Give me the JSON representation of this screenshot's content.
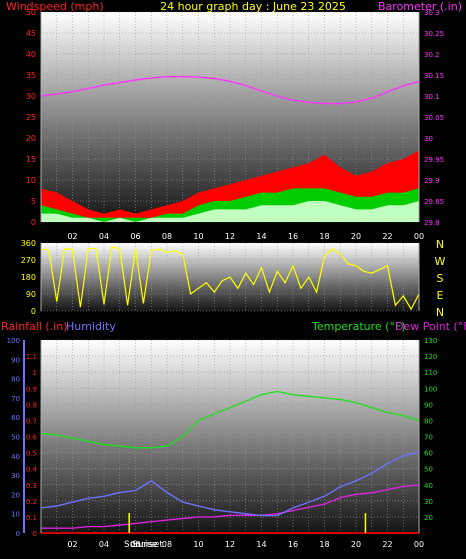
{
  "header": {
    "left_label": "Windspeed (mph)",
    "center_label": "24 hour graph day : June 23 2025",
    "right_label": "Barometer (.in)"
  },
  "colors": {
    "wind": "#ff0000",
    "gust": "#00cc00",
    "avg_wind": "#c0ffc0",
    "barometer": "#ff33ff",
    "direction": "#ffff00",
    "rain": "#ff2020",
    "humidity": "#7070ff",
    "temperature": "#22dd22",
    "dewpoint": "#dd22dd",
    "sun_marker": "#ffff00",
    "rain_baseline": "#cc0000"
  },
  "x_ticks": [
    "02",
    "04",
    "06",
    "08",
    "10",
    "12",
    "14",
    "16",
    "18",
    "20",
    "22",
    "00"
  ],
  "sun_labels": {
    "sunrise": "Sunrise",
    "sunset": "Sunset"
  },
  "chart_data": [
    {
      "type": "line",
      "id": "wind-baro",
      "title": "24 hour graph day : June 23 2025",
      "ylabel_left": "Windspeed (mph)",
      "ylabel_right": "Barometer (.in)",
      "ylim_left": [
        0,
        50
      ],
      "ylim_right": [
        29.8,
        30.3
      ],
      "yticks_left": [
        0,
        5,
        10,
        15,
        20,
        25,
        30,
        35,
        40,
        45,
        50
      ],
      "yticks_right": [
        "29.8",
        "29.9",
        "30",
        "30.1",
        "30.2",
        "30.3"
      ],
      "yticks_right_minor": [
        "29.85",
        "29.95",
        "30.05",
        "30.15",
        "30.25"
      ],
      "x": [
        0,
        1,
        2,
        3,
        4,
        5,
        6,
        7,
        8,
        9,
        10,
        11,
        12,
        13,
        14,
        15,
        16,
        17,
        18,
        19,
        20,
        21,
        22,
        23,
        24
      ],
      "series": [
        {
          "name": "Barometer (.in)",
          "axis": "right",
          "values": [
            30.1,
            30.105,
            30.11,
            30.118,
            30.126,
            30.132,
            30.138,
            30.143,
            30.146,
            30.146,
            30.145,
            30.142,
            30.135,
            30.125,
            30.112,
            30.1,
            30.09,
            30.085,
            30.082,
            30.082,
            30.086,
            30.095,
            30.11,
            30.124,
            30.135
          ]
        },
        {
          "name": "Windspeed (mph)",
          "axis": "left",
          "values": [
            8,
            7,
            5,
            3,
            2,
            3,
            2,
            3,
            4,
            5,
            7,
            8,
            9,
            10,
            11,
            12,
            13,
            14,
            16,
            13,
            11,
            12,
            14,
            15,
            17
          ]
        },
        {
          "name": "Wind gust (mph)",
          "axis": "left",
          "values": [
            4,
            3,
            2,
            1,
            1,
            1,
            1,
            1,
            2,
            2,
            4,
            5,
            5,
            6,
            7,
            7,
            8,
            8,
            8,
            7,
            6,
            6,
            7,
            7,
            8
          ]
        },
        {
          "name": "Average wind (mph)",
          "axis": "left",
          "values": [
            2,
            2,
            1,
            1,
            0,
            1,
            0,
            1,
            1,
            1,
            2,
            3,
            3,
            3,
            4,
            4,
            4,
            5,
            5,
            4,
            3,
            3,
            4,
            4,
            5
          ]
        }
      ]
    },
    {
      "type": "line",
      "id": "direction",
      "ylim": [
        0,
        360
      ],
      "yticks": [
        0,
        90,
        180,
        270,
        360
      ],
      "right_labels": [
        "N",
        "W",
        "S",
        "E",
        "N"
      ],
      "x": [
        0,
        0.5,
        1,
        1.5,
        2,
        2.5,
        3,
        3.5,
        4,
        4.5,
        5,
        5.5,
        6,
        6.5,
        7,
        7.5,
        8,
        8.5,
        9,
        9.5,
        10,
        10.5,
        11,
        11.5,
        12,
        12.5,
        13,
        13.5,
        14,
        14.5,
        15,
        15.5,
        16,
        16.5,
        17,
        17.5,
        18,
        18.5,
        19,
        19.5,
        20,
        20.5,
        21,
        21.5,
        22,
        22.5,
        23,
        23.5,
        24
      ],
      "series": [
        {
          "name": "Wind direction",
          "values": [
            330,
            320,
            50,
            330,
            325,
            20,
            330,
            330,
            35,
            340,
            330,
            30,
            330,
            40,
            320,
            330,
            310,
            320,
            300,
            90,
            120,
            150,
            100,
            160,
            180,
            120,
            200,
            140,
            230,
            100,
            210,
            150,
            240,
            120,
            180,
            100,
            290,
            330,
            300,
            250,
            240,
            210,
            200,
            220,
            240,
            30,
            80,
            10,
            90
          ]
        }
      ]
    },
    {
      "type": "line",
      "id": "rain-hum-temp",
      "labels": {
        "rainfall": "Rainfall (.in)",
        "humidity": "Humidity",
        "temperature": "Temperature (°F)",
        "dewpoint": "Dew Point (°F)"
      },
      "ylim_humidity": [
        0,
        100
      ],
      "ylim_rain": [
        0,
        1.2
      ],
      "ylim_temp": [
        10,
        130
      ],
      "yticks_humidity": [
        0,
        10,
        20,
        30,
        40,
        50,
        60,
        70,
        80,
        90,
        100
      ],
      "yticks_rain": [
        "0",
        "0.1",
        "0.2",
        "0.3",
        "0.4",
        "0.5",
        "0.6",
        "0.7",
        "0.8",
        "0.9",
        "1",
        "1.1"
      ],
      "yticks_temp": [
        20,
        30,
        40,
        50,
        60,
        70,
        80,
        90,
        100,
        110,
        120,
        130
      ],
      "x": [
        0,
        1,
        2,
        3,
        4,
        5,
        6,
        7,
        8,
        9,
        10,
        11,
        12,
        13,
        14,
        15,
        16,
        17,
        18,
        19,
        20,
        21,
        22,
        23,
        24
      ],
      "series": [
        {
          "name": "Temperature (°F)",
          "axis": "temp",
          "values": [
            72,
            71,
            69,
            67,
            65,
            64,
            63,
            63,
            64,
            70,
            80,
            84,
            88,
            92,
            96,
            98,
            96,
            95,
            94,
            93,
            91,
            88,
            85,
            83,
            80
          ]
        },
        {
          "name": "Dew Point (°F)",
          "axis": "temp",
          "values": [
            13,
            13,
            13,
            14,
            14,
            15,
            16,
            17,
            18,
            19,
            20,
            20,
            21,
            21,
            21,
            22,
            24,
            26,
            28,
            32,
            34,
            35,
            37,
            39,
            40
          ]
        },
        {
          "name": "Humidity",
          "axis": "humidity",
          "values": [
            13,
            14,
            16,
            18,
            19,
            21,
            22,
            27,
            21,
            16,
            14,
            12,
            11,
            10,
            9,
            9,
            13,
            16,
            19,
            24,
            27,
            31,
            36,
            40,
            42
          ]
        },
        {
          "name": "Rainfall (.in)",
          "axis": "rain",
          "values": [
            0,
            0,
            0,
            0,
            0,
            0,
            0,
            0,
            0,
            0,
            0,
            0,
            0,
            0,
            0,
            0,
            0,
            0,
            0,
            0,
            0,
            0,
            0,
            0,
            0
          ]
        }
      ]
    }
  ]
}
